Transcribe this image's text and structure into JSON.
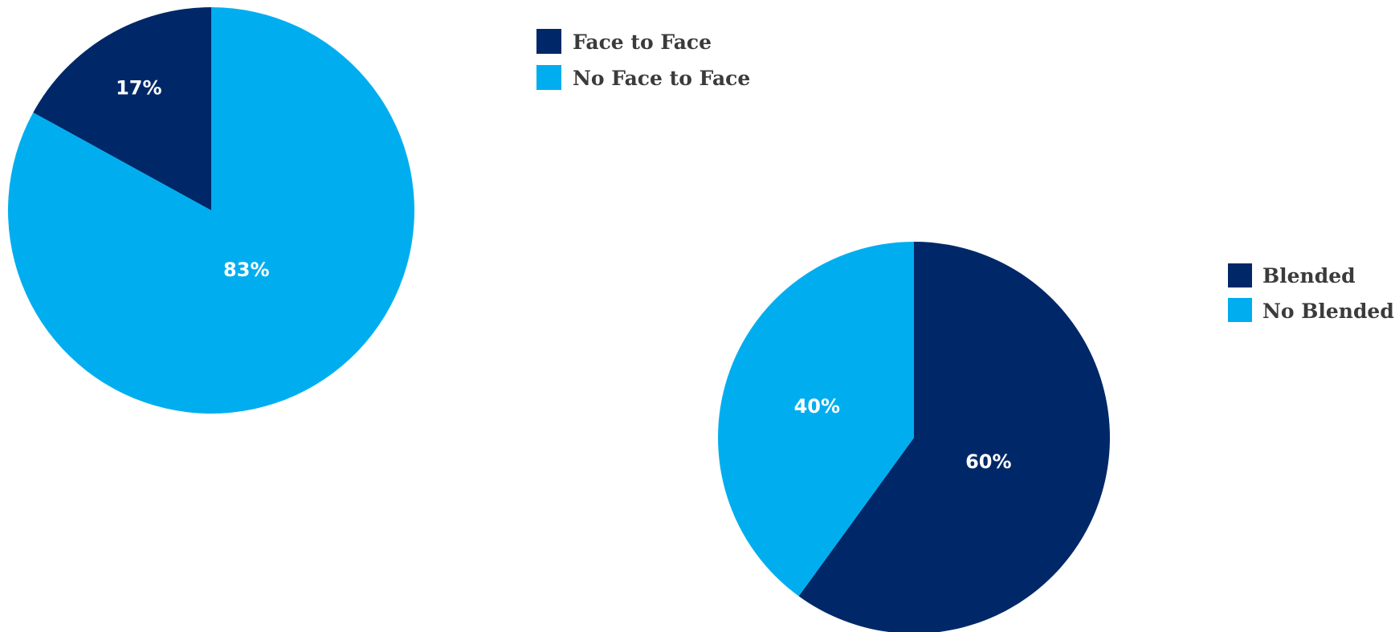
{
  "colors": {
    "dark_navy": "#002868",
    "light_blue": "#00aeef",
    "legend_text": "#3b3b3b",
    "background": "#ffffff"
  },
  "chart_data": [
    {
      "type": "pie",
      "slices": [
        {
          "label": "Face to Face",
          "value": 17,
          "value_label": "17%",
          "color": "#002868"
        },
        {
          "label": "No Face to Face",
          "value": 83,
          "value_label": "83%",
          "color": "#00aeef"
        }
      ],
      "legend": [
        "Face to Face",
        "No Face to Face"
      ],
      "legend_position": "top-right",
      "start_angle_deg": 0,
      "direction": "counterclockwise"
    },
    {
      "type": "pie",
      "slices": [
        {
          "label": "Blended",
          "value": 60,
          "value_label": "60%",
          "color": "#002868"
        },
        {
          "label": "No Blended",
          "value": 40,
          "value_label": "40%",
          "color": "#00aeef"
        }
      ],
      "legend": [
        "Blended",
        "No Blended"
      ],
      "legend_position": "top-right",
      "start_angle_deg": 0,
      "direction": "clockwise"
    }
  ]
}
